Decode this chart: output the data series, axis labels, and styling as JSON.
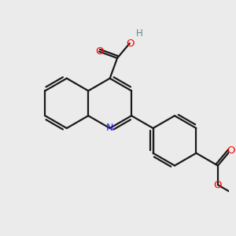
{
  "bg_color": "#ebebeb",
  "bond_color": "#1a1a1a",
  "N_color": "#2020ff",
  "O_color": "#ff0000",
  "H_color": "#5a8a8a",
  "line_width": 1.6,
  "figsize": [
    3.0,
    3.0
  ],
  "dpi": 100,
  "xlim": [
    0,
    10
  ],
  "ylim": [
    0,
    10
  ]
}
